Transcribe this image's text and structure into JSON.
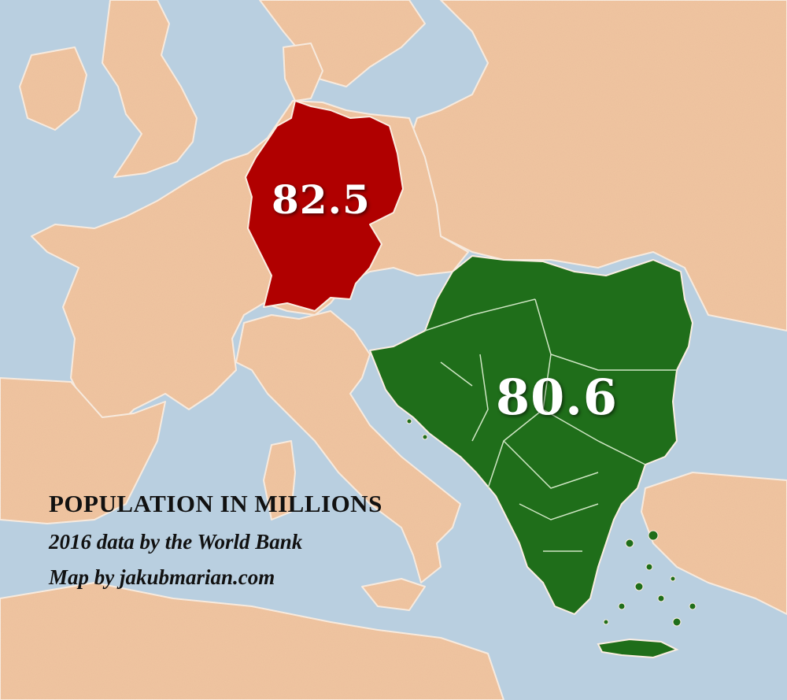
{
  "map": {
    "colors": {
      "sea": "#b9cfe0",
      "land": "#f2c6a2",
      "border": "#fbeee2",
      "germany": "#b00000",
      "balkans": "#1f6e1a"
    },
    "regions": [
      {
        "name": "Germany",
        "value": "82.5",
        "color_key": "germany"
      },
      {
        "name": "Balkans",
        "value": "80.6",
        "color_key": "balkans"
      }
    ]
  },
  "caption": {
    "title": "POPULATION IN MILLIONS",
    "source": "2016 data by the World Bank",
    "credit": "Map by jakubmarian.com"
  }
}
